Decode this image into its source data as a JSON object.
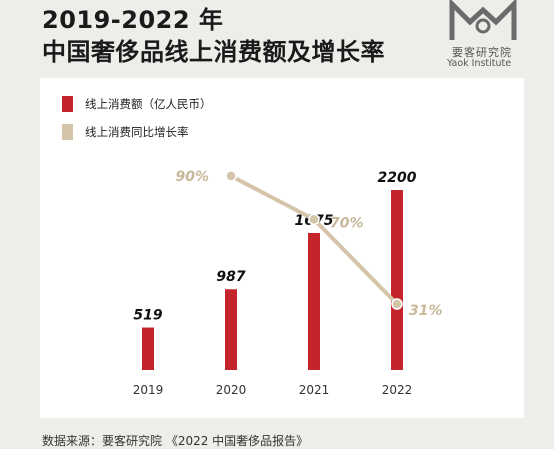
{
  "header": {
    "title_line1": "2019-2022 年",
    "title_line2": "中国奢侈品线上消费额及增长率"
  },
  "logo": {
    "icon": "yaok-logo-icon",
    "name_cn": "要客研究院",
    "name_en": "Yaok Institute"
  },
  "colors": {
    "bar": "#c3252b",
    "line": "#d4c4a8",
    "line_label": "#c8b89b",
    "background": "#efedea",
    "panel": "#ffffff"
  },
  "chart_data": {
    "type": "bar",
    "categories": [
      "2019",
      "2020",
      "2021",
      "2022"
    ],
    "series": [
      {
        "name": "线上消费额（亿人民币）",
        "type": "bar",
        "values": [
          519,
          987,
          1675,
          2200
        ],
        "labels": [
          "519",
          "987",
          "1675",
          "2200"
        ]
      },
      {
        "name": "线上消费同比增长率",
        "type": "line",
        "x": [
          "2020",
          "2021",
          "2022"
        ],
        "values": [
          90,
          70,
          31
        ],
        "labels": [
          "90%",
          "70%",
          "31%"
        ]
      }
    ],
    "legend_position": "top-left",
    "grid": false
  },
  "footer": {
    "source": "数据来源：要客研究院 《2022 中国奢侈品报告》"
  }
}
